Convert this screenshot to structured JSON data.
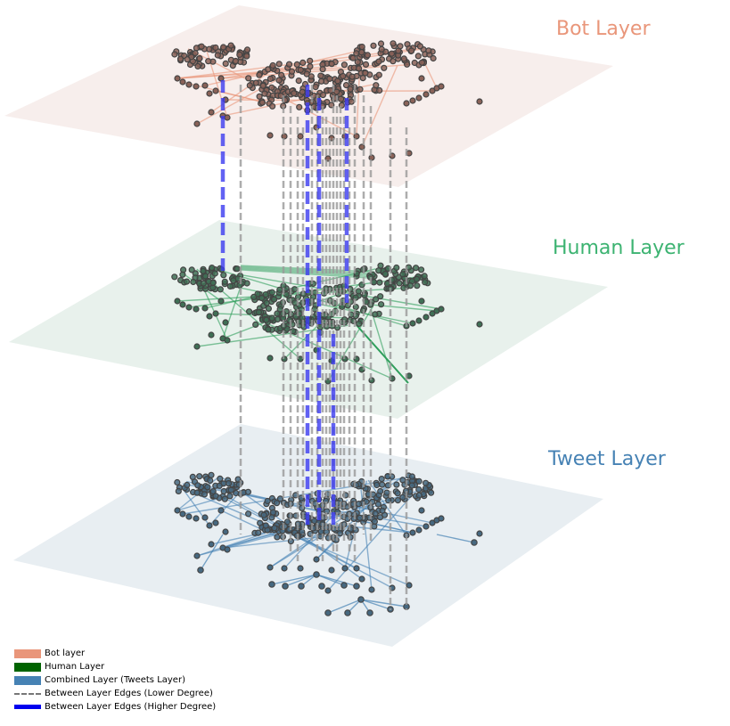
{
  "layers": {
    "bot": {
      "label": "Bot Layer",
      "color": "#E9967A",
      "plane_fill": "#F7EEEC",
      "edge_color": "#E9967A"
    },
    "human": {
      "label": "Human Layer",
      "color": "#3CB371",
      "plane_fill": "#E8F1EC",
      "edge_color": "#2E9E5B"
    },
    "tweet": {
      "label": "Tweet Layer",
      "color": "#4682B4",
      "plane_fill": "#E8EEF2",
      "edge_color": "#4682B4"
    }
  },
  "legend": [
    {
      "label": "Bot layer",
      "kind": "fill",
      "color": "#E9967A"
    },
    {
      "label": "Human Layer",
      "kind": "fill",
      "color": "#006400"
    },
    {
      "label": "Combined Layer (Tweets Layer)",
      "kind": "fill",
      "color": "#4682B4"
    },
    {
      "label": "Between Layer Edges (Lower Degree)",
      "kind": "dash",
      "color": "#777777"
    },
    {
      "label": "Between Layer Edges (Higher Degree)",
      "kind": "thick",
      "color": "#0000EE"
    }
  ],
  "inter_edge_colors": {
    "lower_degree": "#999999",
    "higher_degree": "#3B3BF0"
  }
}
